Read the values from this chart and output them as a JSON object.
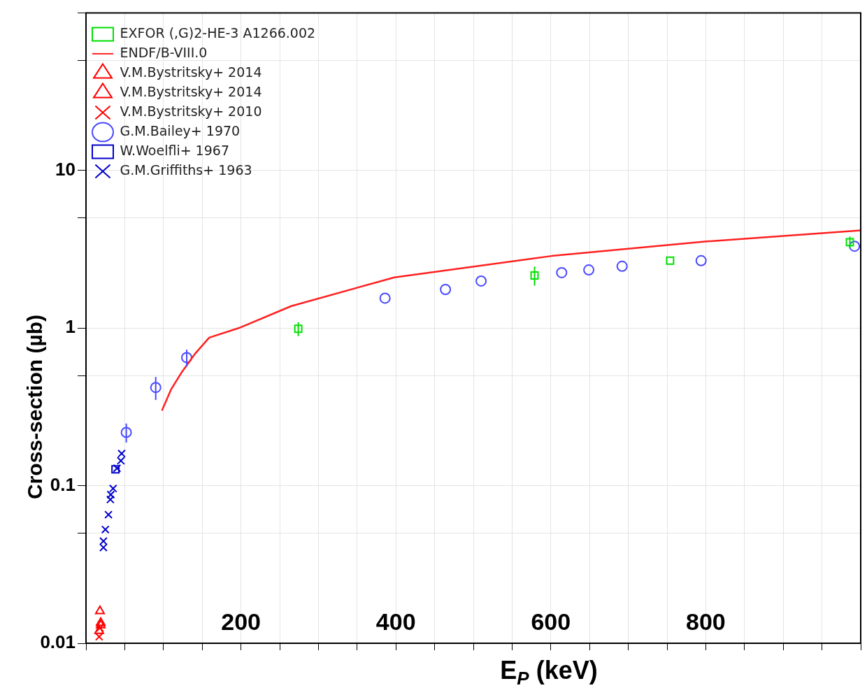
{
  "chart_data": {
    "type": "scatter",
    "xlabel": "E$_{P}$ (keV)",
    "ylabel": "Cross-section (µb)",
    "xlim": [
      0,
      1000
    ],
    "ylim": [
      0.01,
      100
    ],
    "log": "y",
    "grid": true,
    "legend": "top left",
    "xticks": [
      {
        "value": 0,
        "label": null
      },
      {
        "value": 50,
        "label": null
      },
      {
        "value": 100,
        "label": null
      },
      {
        "value": 150,
        "label": null
      },
      200,
      {
        "value": 250,
        "label": null
      },
      {
        "value": 300,
        "label": null
      },
      {
        "value": 350,
        "label": null
      },
      400,
      {
        "value": 450,
        "label": null
      },
      {
        "value": 500,
        "label": null
      },
      {
        "value": 550,
        "label": null
      },
      600,
      {
        "value": 650,
        "label": null
      },
      {
        "value": 700,
        "label": null
      },
      {
        "value": 750,
        "label": null
      },
      800,
      {
        "value": 850,
        "label": null
      },
      {
        "value": 900,
        "label": null
      },
      {
        "value": 950,
        "label": null
      },
      {
        "value": 1000,
        "label": null
      }
    ],
    "yticks": [
      0.01,
      {
        "value": 0.05,
        "label": null
      },
      0.1,
      {
        "value": 0.5,
        "label": null
      },
      1,
      {
        "value": 5,
        "label": null
      },
      10,
      {
        "value": 50,
        "label": null
      },
      {
        "value": 100,
        "label": null
      }
    ],
    "series": [
      {
        "name": "EXFOR (,G)2-HE-3 A1266.002",
        "marker": "square",
        "color": "#00e000",
        "x": [
          274,
          579,
          754,
          986
        ],
        "values": [
          0.99,
          2.16,
          2.68,
          3.51
        ],
        "errors": [
          0.1,
          0.3,
          null,
          0.3
        ]
      },
      {
        "name": "ENDF/B-VIII.0",
        "type": "line",
        "marker": "none",
        "color": "#ff2020",
        "x": [
          98,
          110,
          123,
          141,
          159,
          197,
          265,
          398,
          601,
          801,
          1000
        ],
        "values": [
          0.3,
          0.41,
          0.52,
          0.69,
          0.87,
          1.0,
          1.38,
          2.1,
          2.87,
          3.55,
          4.17
        ]
      },
      {
        "name": "V.M.Bystritsky+ 2014",
        "marker": "triangle",
        "color": "#ff0000",
        "x": [
          18,
          19
        ],
        "values": [
          0.016,
          0.013
        ]
      },
      {
        "name": "V.M.Bystritsky+ 2014",
        "marker": "triangle",
        "color": "#ff0000",
        "x": [
          17,
          19
        ],
        "values": [
          0.012,
          0.0135
        ]
      },
      {
        "name": "V.M.Bystritsky+ 2010",
        "marker": "cross",
        "color": "#ff0000",
        "x": [
          17,
          18
        ],
        "values": [
          0.011,
          0.0125
        ]
      },
      {
        "name": "G.M.Bailey+ 1970",
        "marker": "circle",
        "color": "#4a4aff",
        "x": [
          52,
          90,
          130,
          386,
          464,
          510,
          614,
          649,
          692,
          794,
          992
        ],
        "values": [
          0.218,
          0.42,
          0.65,
          1.55,
          1.76,
          1.99,
          2.25,
          2.34,
          2.47,
          2.68,
          3.31
        ],
        "errors": [
          0.03,
          0.07,
          0.08,
          null,
          null,
          null,
          null,
          null,
          null,
          null,
          null
        ]
      },
      {
        "name": "W.Woelfli+ 1967",
        "marker": "square",
        "color": "#0000cc",
        "x": [
          38
        ],
        "values": [
          0.127
        ]
      },
      {
        "name": "G.M.Griffiths+ 1963",
        "marker": "cross",
        "color": "#0000cc",
        "x": [
          22.5,
          22.5,
          25,
          29,
          31.5,
          32,
          35,
          40,
          45,
          46
        ],
        "values": [
          0.0405,
          0.0445,
          0.0527,
          0.0655,
          0.0817,
          0.0877,
          0.096,
          0.129,
          0.144,
          0.16
        ]
      }
    ]
  }
}
